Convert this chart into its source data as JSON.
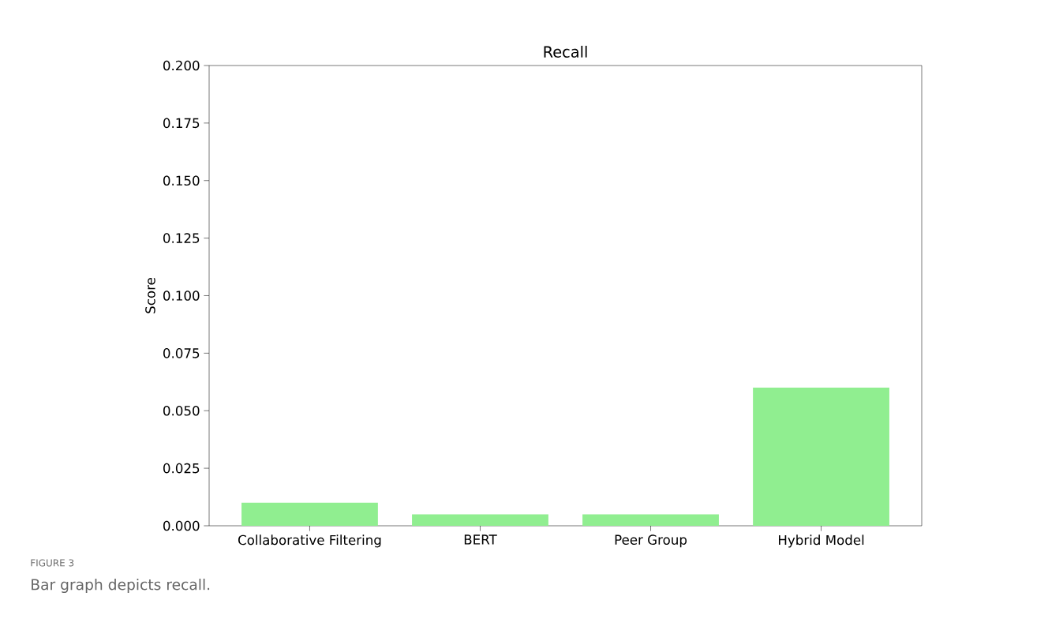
{
  "chart_data": {
    "type": "bar",
    "title": "Recall",
    "ylabel": "Score",
    "categories": [
      "Collaborative Filtering",
      "BERT",
      "Peer Group",
      "Hybrid Model"
    ],
    "values": [
      0.01,
      0.005,
      0.005,
      0.06
    ],
    "color": "#90ee90",
    "ylim": [
      0,
      0.2
    ],
    "yticks": [
      {
        "value": 0,
        "label": "0.000"
      },
      0.025,
      {
        "value": 0.05,
        "label": "0.050"
      },
      0.075,
      {
        "value": 0.1,
        "label": "0.100"
      },
      0.125,
      {
        "value": 0.15,
        "label": "0.150"
      },
      0.175,
      {
        "value": 0.2,
        "label": "0.200"
      }
    ],
    "grid": false,
    "annotations": [
      "FIGURE 3",
      "Bar graph depicts recall."
    ]
  }
}
